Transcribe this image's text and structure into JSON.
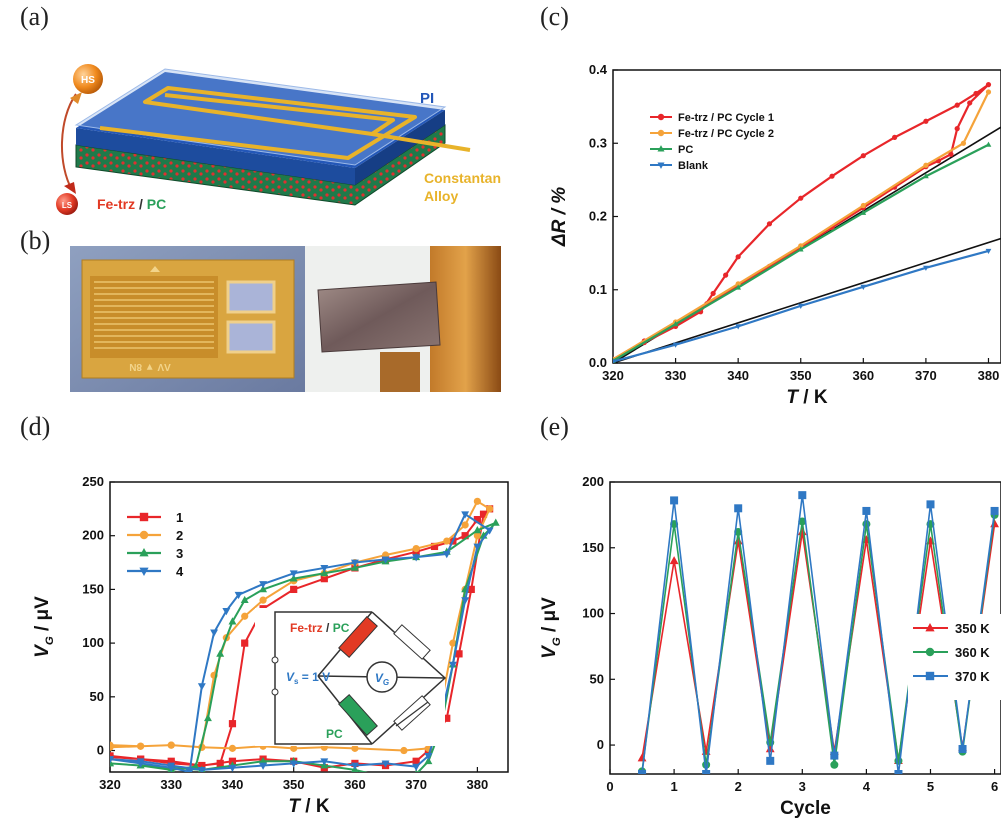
{
  "panel_labels": [
    "(a)",
    "(b)",
    "(c)",
    "(d)",
    "(e)"
  ],
  "diagram_a": {
    "hs": "HS",
    "ls": "LS",
    "pi": "PI",
    "fe": "Fe-trz",
    "slash": " / ",
    "pc": "PC",
    "constantan": "Constantan",
    "alloy": "Alloy"
  },
  "photo_b": {
    "gauge_text": "ΛV ▼ 8N"
  },
  "colors": {
    "red": "#e8262a",
    "orange": "#f5a33a",
    "green": "#2aa05a",
    "blue": "#2f78c4",
    "pi_blue": "#2357b8",
    "gold": "#e8b32a"
  },
  "chart_data": [
    {
      "id": "c",
      "type": "line",
      "xlabel": "T / K",
      "ylabel": "ΔR / %",
      "xlim": [
        320,
        382
      ],
      "ylim": [
        0,
        0.4
      ],
      "xticks": [
        320,
        330,
        340,
        350,
        360,
        370,
        380
      ],
      "yticks": [
        0.0,
        0.1,
        0.2,
        0.3,
        0.4
      ],
      "ytick_labels": [
        "0.0",
        "0.1",
        "0.2",
        "0.3",
        "0.4"
      ],
      "legend_position": "top-left",
      "series": [
        {
          "name": "Fe-trz / PC Cycle 1",
          "color": "#e8262a",
          "marker": "circle",
          "x": [
            320,
            325,
            330,
            334,
            336,
            338,
            340,
            345,
            350,
            355,
            360,
            365,
            370,
            375,
            378,
            380,
            377,
            375,
            374,
            372,
            370,
            365,
            360,
            355,
            350,
            345,
            340,
            335,
            330,
            325,
            320
          ],
          "y": [
            0.005,
            0.028,
            0.05,
            0.07,
            0.095,
            0.12,
            0.145,
            0.19,
            0.225,
            0.255,
            0.283,
            0.308,
            0.33,
            0.352,
            0.368,
            0.38,
            0.355,
            0.32,
            0.285,
            0.276,
            0.268,
            0.24,
            0.212,
            0.185,
            0.158,
            0.132,
            0.106,
            0.081,
            0.055,
            0.03,
            0.005
          ]
        },
        {
          "name": "Fe-trz / PC Cycle 2",
          "color": "#f5a33a",
          "marker": "circle",
          "x": [
            320,
            330,
            340,
            350,
            360,
            370,
            376,
            380
          ],
          "y": [
            0.005,
            0.056,
            0.108,
            0.16,
            0.215,
            0.27,
            0.3,
            0.37
          ]
        },
        {
          "name": "PC",
          "color": "#2aa05a",
          "marker": "triangle",
          "x": [
            320,
            330,
            340,
            350,
            360,
            370,
            380
          ],
          "y": [
            0.003,
            0.053,
            0.103,
            0.155,
            0.205,
            0.255,
            0.298
          ]
        },
        {
          "name": "Blank",
          "color": "#2f78c4",
          "marker": "triangle-down",
          "x": [
            320,
            330,
            340,
            350,
            360,
            370,
            380
          ],
          "y": [
            0.002,
            0.025,
            0.05,
            0.078,
            0.104,
            0.13,
            0.153
          ]
        }
      ],
      "fit_lines": [
        {
          "x": [
            320,
            382
          ],
          "y": [
            0.0,
            0.322
          ]
        },
        {
          "x": [
            320,
            382
          ],
          "y": [
            0.0,
            0.17
          ]
        }
      ]
    },
    {
      "id": "d",
      "type": "line",
      "xlabel": "T / K",
      "ylabel": "V_G / μV",
      "xlim": [
        320,
        385
      ],
      "ylim": [
        -20,
        250
      ],
      "xticks": [
        320,
        330,
        340,
        350,
        360,
        370,
        380
      ],
      "yticks": [
        0,
        50,
        100,
        150,
        200,
        250
      ],
      "legend_position": "top-left",
      "inset": {
        "fe": "Fe-trz",
        "slash": " / ",
        "pc": "PC",
        "vs": "V",
        "vs_sub": "s",
        "vs_val": " = 1 V",
        "vg": "V",
        "vg_sub": "G",
        "pc2": "PC"
      },
      "series": [
        {
          "name": "1",
          "color": "#e8262a",
          "marker": "square",
          "x": [
            320,
            325,
            330,
            335,
            338,
            340,
            342,
            345,
            350,
            355,
            360,
            365,
            370,
            373,
            376,
            378,
            380,
            382,
            381,
            379,
            377,
            375,
            372,
            370,
            365,
            360,
            355,
            350,
            345,
            340,
            335,
            330,
            325,
            320
          ],
          "y": [
            -5,
            -8,
            -10,
            -14,
            -12,
            25,
            100,
            132,
            150,
            160,
            170,
            178,
            185,
            190,
            195,
            200,
            215,
            225,
            220,
            150,
            90,
            30,
            0,
            -10,
            -14,
            -12,
            -16,
            -10,
            -8,
            -10,
            -14,
            -12,
            -8,
            -6
          ]
        },
        {
          "name": "2",
          "color": "#f5a33a",
          "marker": "circle",
          "x": [
            320,
            325,
            330,
            335,
            337,
            339,
            342,
            345,
            350,
            355,
            360,
            365,
            370,
            375,
            378,
            380,
            382,
            380,
            378,
            376,
            374,
            372,
            368,
            360,
            355,
            350,
            345,
            340,
            335,
            330,
            325,
            320
          ],
          "y": [
            5,
            4,
            5,
            3,
            70,
            105,
            125,
            140,
            158,
            165,
            175,
            182,
            188,
            195,
            210,
            232,
            225,
            200,
            150,
            100,
            40,
            2,
            0,
            2,
            3,
            2,
            4,
            2,
            3,
            5,
            4,
            3
          ]
        },
        {
          "name": "3",
          "color": "#2aa05a",
          "marker": "triangle",
          "x": [
            320,
            325,
            330,
            334,
            336,
            338,
            340,
            342,
            345,
            350,
            355,
            360,
            365,
            370,
            375,
            380,
            383,
            381,
            378,
            376,
            374,
            372,
            370,
            365,
            360,
            355,
            350,
            345,
            340,
            335,
            330,
            325,
            320
          ],
          "y": [
            -12,
            -14,
            -18,
            -15,
            30,
            90,
            120,
            140,
            150,
            160,
            165,
            170,
            176,
            180,
            185,
            205,
            212,
            200,
            150,
            80,
            20,
            -10,
            -22,
            -25,
            -18,
            -14,
            -10,
            -10,
            -14,
            -18,
            -16,
            -14,
            -12
          ]
        },
        {
          "name": "4",
          "color": "#2f78c4",
          "marker": "triangle-down",
          "x": [
            320,
            325,
            330,
            333,
            335,
            337,
            339,
            341,
            345,
            350,
            355,
            360,
            365,
            370,
            375,
            378,
            382,
            380,
            378,
            376,
            374,
            372,
            370,
            365,
            360,
            355,
            350,
            345,
            340,
            335,
            330,
            325,
            320
          ],
          "y": [
            -8,
            -12,
            -16,
            -20,
            60,
            110,
            130,
            145,
            155,
            165,
            170,
            175,
            178,
            180,
            183,
            220,
            205,
            190,
            140,
            80,
            30,
            -5,
            -15,
            -12,
            -14,
            -10,
            -12,
            -14,
            -16,
            -18,
            -14,
            -10,
            -8
          ]
        }
      ]
    },
    {
      "id": "e",
      "type": "line",
      "xlabel": "Cycle",
      "ylabel": "V_G / μV",
      "xlim": [
        0,
        6.1
      ],
      "ylim": [
        -22,
        200
      ],
      "xticks": [
        0,
        1,
        2,
        3,
        4,
        5,
        6
      ],
      "yticks": [
        0,
        50,
        100,
        150,
        200
      ],
      "legend_position": "right",
      "series": [
        {
          "name": "350 K",
          "color": "#e8262a",
          "marker": "triangle",
          "x": [
            0.5,
            1,
            1.5,
            2,
            2.5,
            3,
            3.5,
            4,
            4.5,
            5,
            5.5,
            6
          ],
          "y": [
            -10,
            140,
            -5,
            155,
            -3,
            162,
            -5,
            156,
            -12,
            155,
            -2,
            168
          ]
        },
        {
          "name": "360 K",
          "color": "#2aa05a",
          "marker": "circle",
          "x": [
            0.5,
            1,
            1.5,
            2,
            2.5,
            3,
            3.5,
            4,
            4.5,
            5,
            5.5,
            6
          ],
          "y": [
            -20,
            168,
            -15,
            162,
            2,
            170,
            -15,
            168,
            -12,
            168,
            -5,
            175
          ]
        },
        {
          "name": "370 K",
          "color": "#2f78c4",
          "marker": "square",
          "x": [
            0.5,
            1,
            1.5,
            2,
            2.5,
            3,
            3.5,
            4,
            4.5,
            5,
            5.5,
            6
          ],
          "y": [
            -22,
            186,
            -22,
            180,
            -12,
            190,
            -8,
            178,
            -22,
            183,
            -3,
            178
          ]
        }
      ]
    }
  ]
}
